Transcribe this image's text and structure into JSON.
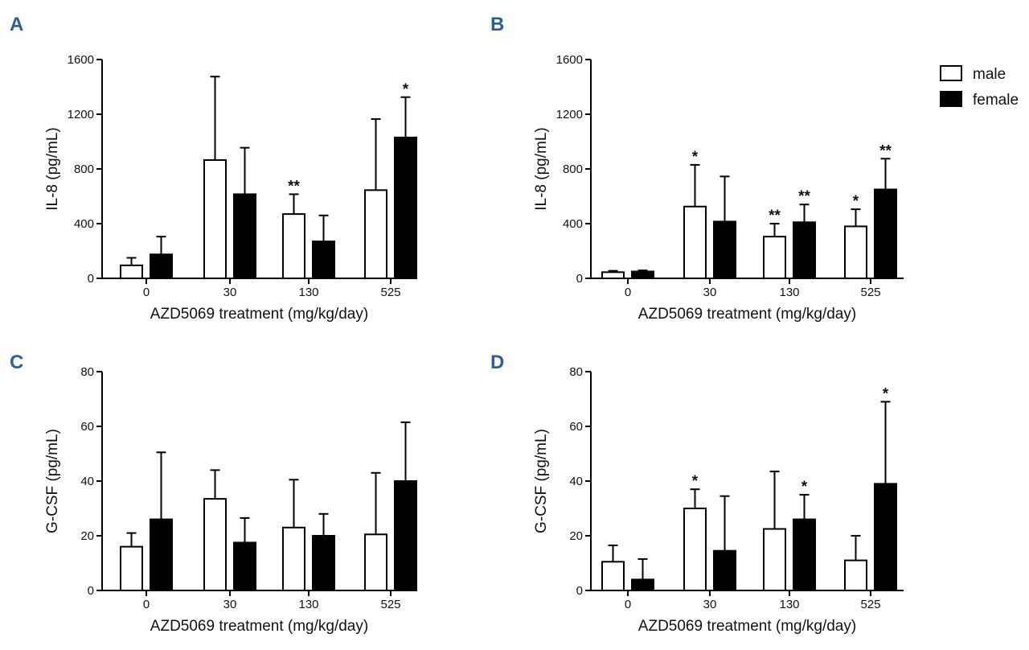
{
  "legend": {
    "entries": [
      {
        "label": "male",
        "fill": "#ffffff"
      },
      {
        "label": "female",
        "fill": "#000000"
      }
    ]
  },
  "chart_data": [
    {
      "panel": "A",
      "type": "bar",
      "categories": [
        "0",
        "30",
        "130",
        "525"
      ],
      "xlabel": "AZD5069 treatment (mg/kg/day)",
      "ylabel": "IL-8 (pg/mL)",
      "ylim": [
        0,
        1600
      ],
      "yticks": [
        "0",
        "400",
        "800",
        "1200",
        "1600"
      ],
      "series": [
        {
          "name": "male",
          "values": [
            95,
            865,
            470,
            645
          ],
          "errors": [
            55,
            610,
            145,
            520
          ],
          "stars": [
            "",
            "",
            "**",
            ""
          ]
        },
        {
          "name": "female",
          "values": [
            175,
            615,
            270,
            1030
          ],
          "errors": [
            130,
            340,
            190,
            295
          ],
          "stars": [
            "",
            "",
            "",
            "*"
          ]
        }
      ]
    },
    {
      "panel": "B",
      "type": "bar",
      "categories": [
        "0",
        "30",
        "130",
        "525"
      ],
      "xlabel": "AZD5069 treatment (mg/kg/day)",
      "ylabel": "IL-8 (pg/mL)",
      "ylim": [
        0,
        1600
      ],
      "yticks": [
        "0",
        "400",
        "800",
        "1200",
        "1600"
      ],
      "series": [
        {
          "name": "male",
          "values": [
            45,
            525,
            305,
            380
          ],
          "errors": [
            10,
            305,
            95,
            125
          ],
          "stars": [
            "",
            "*",
            "**",
            "*"
          ]
        },
        {
          "name": "female",
          "values": [
            50,
            415,
            410,
            650
          ],
          "errors": [
            8,
            330,
            130,
            225
          ],
          "stars": [
            "",
            "",
            "**",
            "**"
          ]
        }
      ]
    },
    {
      "panel": "C",
      "type": "bar",
      "categories": [
        "0",
        "30",
        "130",
        "525"
      ],
      "xlabel": "AZD5069 treatment (mg/kg/day)",
      "ylabel": "G-CSF (pg/mL)",
      "ylim": [
        0,
        80
      ],
      "yticks": [
        "0",
        "20",
        "40",
        "60",
        "80"
      ],
      "series": [
        {
          "name": "male",
          "values": [
            16,
            33.5,
            23,
            20.5
          ],
          "errors": [
            5,
            10.5,
            17.5,
            22.5
          ],
          "stars": [
            "",
            "",
            "",
            ""
          ]
        },
        {
          "name": "female",
          "values": [
            26,
            17.5,
            20,
            40
          ],
          "errors": [
            24.5,
            9,
            8,
            21.5
          ],
          "stars": [
            "",
            "",
            "",
            ""
          ]
        }
      ]
    },
    {
      "panel": "D",
      "type": "bar",
      "categories": [
        "0",
        "30",
        "130",
        "525"
      ],
      "xlabel": "AZD5069 treatment (mg/kg/day)",
      "ylabel": "G-CSF (pg/mL)",
      "ylim": [
        0,
        80
      ],
      "yticks": [
        "0",
        "20",
        "40",
        "60",
        "80"
      ],
      "series": [
        {
          "name": "male",
          "values": [
            10.5,
            30,
            22.5,
            11
          ],
          "errors": [
            6,
            7,
            21,
            9
          ],
          "stars": [
            "",
            "*",
            "",
            ""
          ]
        },
        {
          "name": "female",
          "values": [
            4,
            14.5,
            26,
            39
          ],
          "errors": [
            7.5,
            20,
            9,
            30
          ],
          "stars": [
            "",
            "",
            "*",
            "*"
          ]
        }
      ]
    }
  ]
}
